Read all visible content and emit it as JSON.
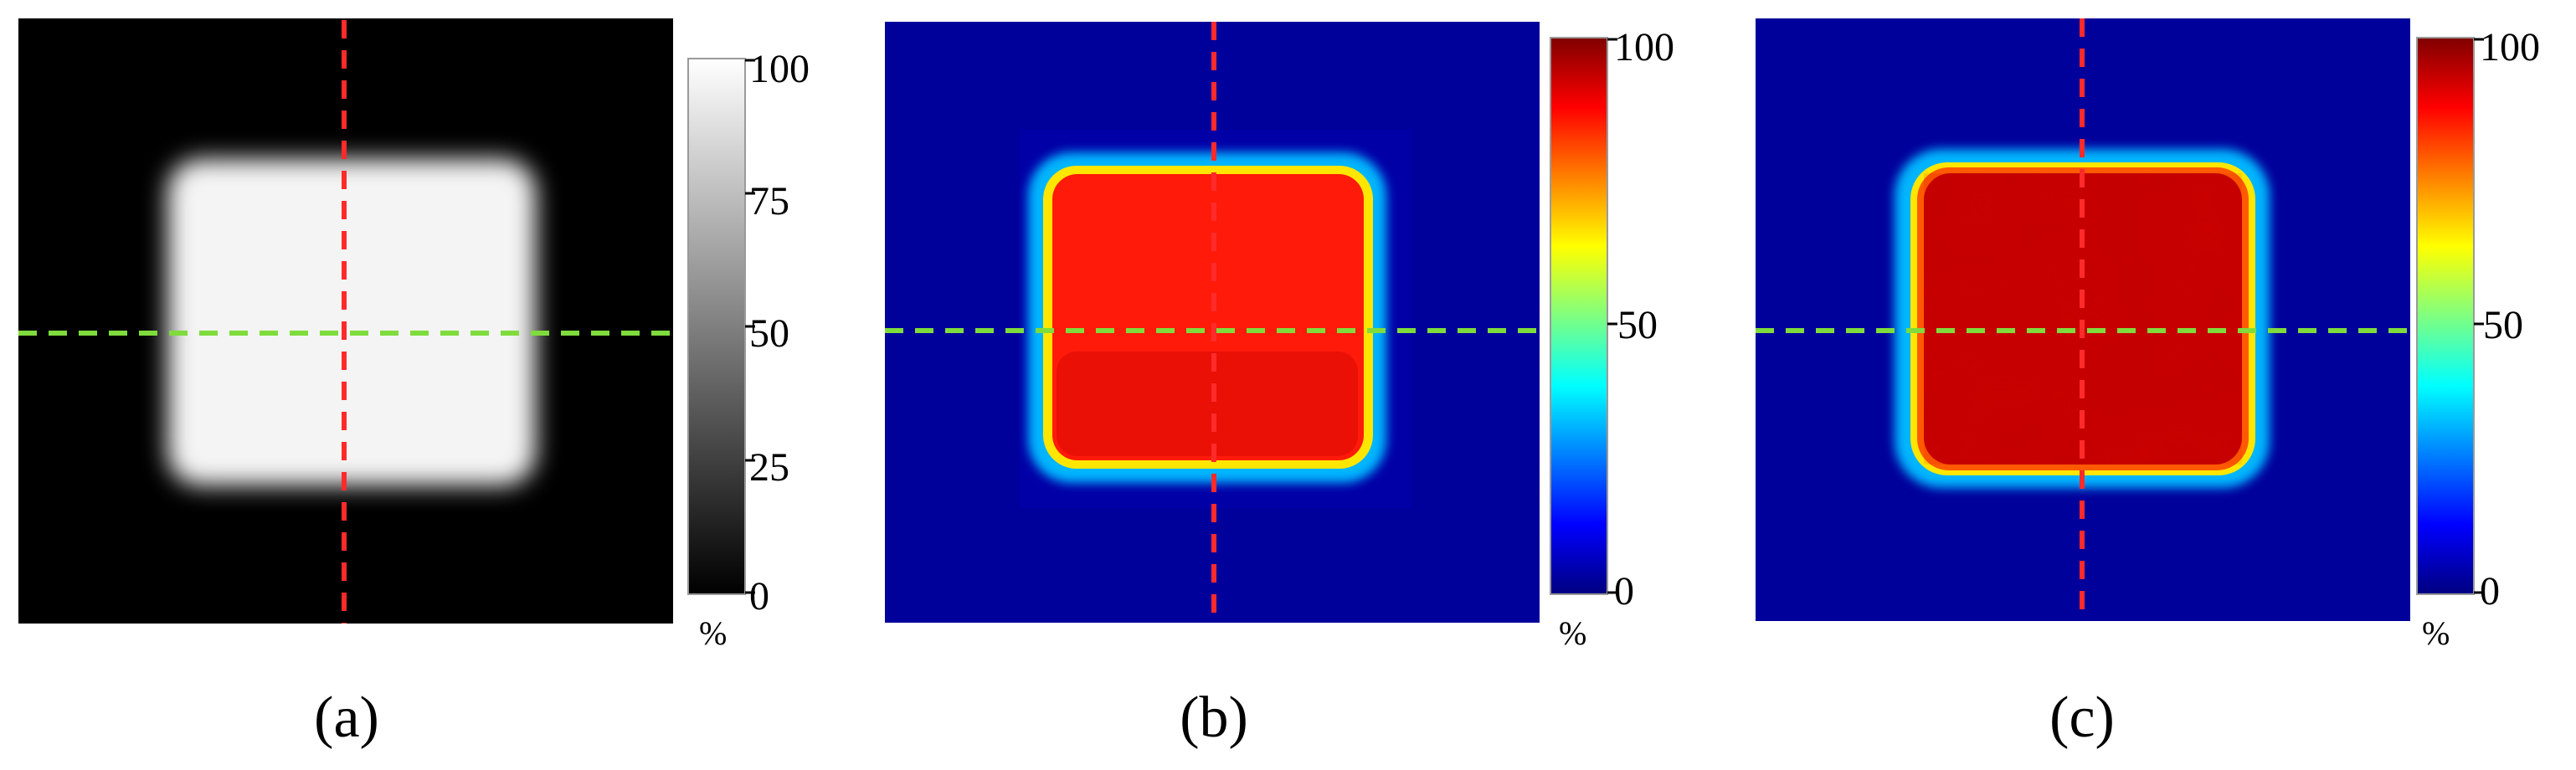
{
  "figure": {
    "panels": [
      {
        "label": "(a)",
        "colormap": "gray",
        "colorbar": {
          "ticks": [
            "100",
            "75",
            "50",
            "25",
            "0"
          ],
          "unit": "%"
        }
      },
      {
        "label": "(b)",
        "colormap": "jet",
        "colorbar": {
          "ticks": [
            "100",
            "50",
            "0"
          ],
          "unit": "%"
        }
      },
      {
        "label": "(c)",
        "colormap": "jet",
        "colorbar": {
          "ticks": [
            "100",
            "50",
            "0"
          ],
          "unit": "%"
        }
      }
    ]
  },
  "chart_data": [
    {
      "type": "heatmap",
      "colormap": "gray",
      "value_range": [
        0,
        100
      ],
      "unit": "%",
      "colorbar_ticks": [
        100,
        75,
        50,
        25,
        0
      ],
      "square_level": 100,
      "background_level": 0,
      "guide_lines": {
        "vertical": "#ff2a2a",
        "horizontal": "#7fdc3c"
      }
    },
    {
      "type": "heatmap",
      "colormap": "jet",
      "value_range": [
        0,
        100
      ],
      "unit": "%",
      "colorbar_ticks": [
        100,
        50,
        0
      ],
      "square_level": 88,
      "background_level": 0,
      "guide_lines": {
        "vertical": "#ff2a2a",
        "horizontal": "#7fdc3c"
      }
    },
    {
      "type": "heatmap",
      "colormap": "jet",
      "value_range": [
        0,
        100
      ],
      "unit": "%",
      "colorbar_ticks": [
        100,
        50,
        0
      ],
      "square_level": 93,
      "background_level": 0,
      "guide_lines": {
        "vertical": "#ff2a2a",
        "horizontal": "#7fdc3c"
      }
    }
  ]
}
